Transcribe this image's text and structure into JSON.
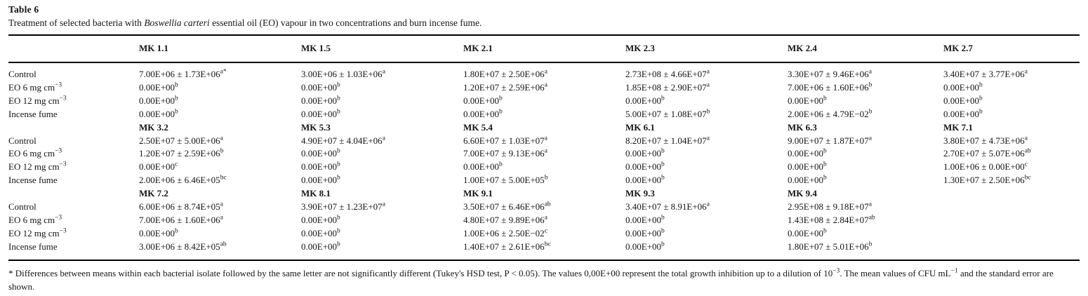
{
  "table": {
    "label": "Table 6",
    "caption": {
      "prefix": "Treatment of selected bacteria with ",
      "italic": "Boswellia carteri",
      "suffix": " essential oil (EO) vapour in two concentrations and burn incense fume."
    },
    "columns_header": [
      "MK 1.1",
      "MK 1.5",
      "MK 2.1",
      "MK 2.3",
      "MK 2.4",
      "MK 2.7"
    ],
    "groups": [
      {
        "subheader": null,
        "rows": [
          {
            "label": "Control",
            "label_sup": "",
            "cells": [
              [
                "7.00E+06 ± 1.73E+06",
                "a*"
              ],
              [
                "3.00E+06 ± 1.03E+06",
                "a"
              ],
              [
                "1.80E+07 ± 2.50E+06",
                "a"
              ],
              [
                "2.73E+08 ± 4.66E+07",
                "a"
              ],
              [
                "3.30E+07 ± 9.46E+06",
                "a"
              ],
              [
                "3.40E+07 ± 3.77E+06",
                "a"
              ]
            ]
          },
          {
            "label": "EO 6 mg cm",
            "label_sup": "−3",
            "cells": [
              [
                "0.00E+00",
                "b"
              ],
              [
                "0.00E+00",
                "b"
              ],
              [
                "1.20E+07 ± 2.59E+06",
                "a"
              ],
              [
                "1.85E+08 ± 2.90E+07",
                "a"
              ],
              [
                "7.00E+06 ± 1.60E+06",
                "b"
              ],
              [
                "0.00E+00",
                "b"
              ]
            ]
          },
          {
            "label": "EO 12 mg cm",
            "label_sup": "−3",
            "cells": [
              [
                "0.00E+00",
                "b"
              ],
              [
                "0.00E+00",
                "b"
              ],
              [
                "0.00E+00",
                "b"
              ],
              [
                "0.00E+00",
                "b"
              ],
              [
                "0.00E+00",
                "b"
              ],
              [
                "0.00E+00",
                "b"
              ]
            ]
          },
          {
            "label": "Incense fume",
            "label_sup": "",
            "cells": [
              [
                "0.00E+00",
                "b"
              ],
              [
                "0.00E+00",
                "b"
              ],
              [
                "0.00E+00",
                "b"
              ],
              [
                "5.00E+07 ± 1.08E+07",
                "b"
              ],
              [
                "2.00E+06 ± 4.79E−02",
                "b"
              ],
              [
                "0.00E+00",
                "b"
              ]
            ]
          }
        ]
      },
      {
        "subheader": [
          "MK 3.2",
          "MK 5.3",
          "MK 5.4",
          "MK 6.1",
          "MK 6.3",
          "MK 7.1"
        ],
        "rows": [
          {
            "label": "Control",
            "label_sup": "",
            "cells": [
              [
                "2.50E+07 ± 5.00E+06",
                "a"
              ],
              [
                "4.90E+07 ± 4.04E+06",
                "a"
              ],
              [
                "6.60E+07 ± 1.03E+07",
                "a"
              ],
              [
                "8.20E+07 ± 1.04E+07",
                "a"
              ],
              [
                "9.00E+07 ± 1.87E+07",
                "a"
              ],
              [
                "3.80E+07 ± 4.73E+06",
                "a"
              ]
            ]
          },
          {
            "label": "EO 6 mg cm",
            "label_sup": "−3",
            "cells": [
              [
                "1.20E+07 ± 2.59E+06",
                "b"
              ],
              [
                "0.00E+00",
                "b"
              ],
              [
                "7.00E+07 ± 9.13E+06",
                "a"
              ],
              [
                "0.00E+00",
                "b"
              ],
              [
                "0.00E+00",
                "b"
              ],
              [
                "2.70E+07 ± 5.07E+06",
                "ab"
              ]
            ]
          },
          {
            "label": "EO 12 mg cm",
            "label_sup": "−3",
            "cells": [
              [
                "0.00E+00",
                "c"
              ],
              [
                "0.00E+00",
                "b"
              ],
              [
                "0.00E+00",
                "b"
              ],
              [
                "0.00E+00",
                "b"
              ],
              [
                "0.00E+00",
                "b"
              ],
              [
                "1.00E+06 ± 0.00E+00",
                "c"
              ]
            ]
          },
          {
            "label": "Incense fume",
            "label_sup": "",
            "cells": [
              [
                "2.00E+06 ± 6.46E+05",
                "bc"
              ],
              [
                "0.00E+00",
                "b"
              ],
              [
                "1.00E+07 ± 5.00E+05",
                "b"
              ],
              [
                "0.00E+00",
                "b"
              ],
              [
                "0.00E+00",
                "b"
              ],
              [
                "1.30E+07 ± 2.50E+06",
                "bc"
              ]
            ]
          }
        ]
      },
      {
        "subheader": [
          "MK 7.2",
          "MK 8.1",
          "MK 9.1",
          "MK 9.3",
          "MK 9.4",
          ""
        ],
        "rows": [
          {
            "label": "Control",
            "label_sup": "",
            "cells": [
              [
                "6.00E+06 ± 8.74E+05",
                "a"
              ],
              [
                "3.90E+07 ± 1.23E+07",
                "a"
              ],
              [
                "3.50E+07 ± 6.46E+06",
                "ab"
              ],
              [
                "3.40E+07 ± 8.91E+06",
                "a"
              ],
              [
                "2.95E+08 ± 9.18E+07",
                "a"
              ],
              null
            ]
          },
          {
            "label": "EO 6 mg cm",
            "label_sup": "−3",
            "cells": [
              [
                "7.00E+06 ± 1.60E+06",
                "a"
              ],
              [
                "0.00E+00",
                "b"
              ],
              [
                "4.80E+07 ± 9.89E+06",
                "a"
              ],
              [
                "0.00E+00",
                "b"
              ],
              [
                "1.43E+08 ± 2.84E+07",
                "ab"
              ],
              null
            ]
          },
          {
            "label": "EO 12 mg cm",
            "label_sup": "−3",
            "cells": [
              [
                "0.00E+00",
                "b"
              ],
              [
                "0.00E+00",
                "b"
              ],
              [
                "1.00E+06 ± 2.50E−02",
                "c"
              ],
              [
                "0.00E+00",
                "b"
              ],
              [
                "0.00E+00",
                "b"
              ],
              null
            ]
          },
          {
            "label": "Incense fume",
            "label_sup": "",
            "cells": [
              [
                "3.00E+06 ± 8.42E+05",
                "ab"
              ],
              [
                "0.00E+00",
                "b"
              ],
              [
                "1.40E+07 ± 2.61E+06",
                "bc"
              ],
              [
                "0.00E+00",
                "b"
              ],
              [
                "1.80E+07 ± 5.01E+06",
                "b"
              ],
              null
            ]
          }
        ]
      }
    ]
  },
  "footnote": {
    "segments": [
      {
        "t": "* Differences between means within each bacterial isolate followed by the same letter are not significantly different (Tukey's HSD test, P < 0.05). The values 0,00E+00 represent the total growth inhibition up to a dilution of 10"
      },
      {
        "sup": "−3"
      },
      {
        "t": ". The mean values of CFU mL"
      },
      {
        "sup": "−1"
      },
      {
        "t": " and the standard error are shown."
      }
    ]
  }
}
